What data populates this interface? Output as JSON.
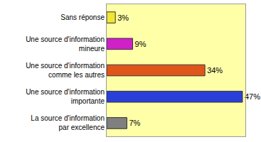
{
  "chart_data": {
    "type": "bar",
    "orientation": "horizontal",
    "categories": [
      "Sans réponse",
      "Une source d'information mineure",
      "Une source d'information comme les autres",
      "Une source d'information importante",
      "La source d'information par excellence"
    ],
    "values": [
      3,
      9,
      34,
      47,
      7
    ],
    "value_labels": [
      "3%",
      "9%",
      "34%",
      "47%",
      "7%"
    ],
    "colors": [
      "#f2e632",
      "#d020c8",
      "#e0561a",
      "#2a3fd8",
      "#7f7f7f"
    ],
    "xlim": [
      0,
      48
    ],
    "data_labels": true,
    "tick_labels": "y",
    "grid": false
  }
}
